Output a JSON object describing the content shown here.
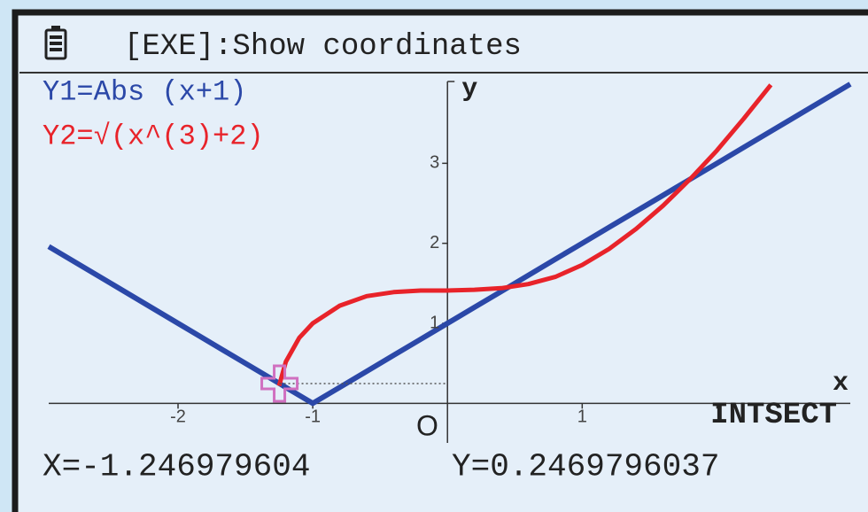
{
  "chart_data": {
    "type": "line",
    "header": "[EXE]:Show coordinates",
    "x_axis_label": "x",
    "y_axis_label": "y",
    "origin_label": "O",
    "status": "INTSECT",
    "x": [
      -2.96,
      -2.5,
      -2,
      -1.5,
      -1.25,
      -1.2,
      -1.1,
      -1,
      -0.8,
      -0.6,
      -0.4,
      -0.2,
      0,
      0.2,
      0.4,
      0.6,
      0.8,
      1,
      1.2,
      1.4,
      1.6,
      1.8,
      2,
      2.2,
      2.4,
      2.99
    ],
    "series": [
      {
        "name": "Y1=Abs (x+1)",
        "color": "#2b48a8",
        "values": [
          1.96,
          1.5,
          1,
          0.5,
          0.25,
          0.2,
          0.1,
          0,
          0.2,
          0.4,
          0.6,
          0.8,
          1,
          1.2,
          1.4,
          1.6,
          1.8,
          2,
          2.2,
          2.4,
          2.6,
          2.8,
          3,
          3.2,
          3.4,
          3.99
        ]
      },
      {
        "name": "Y2=√(x^(3)+2)",
        "color": "#e8232a",
        "values": [
          null,
          null,
          null,
          null,
          0.22,
          0.52,
          0.82,
          1,
          1.22,
          1.34,
          1.39,
          1.41,
          1.41,
          1.42,
          1.44,
          1.49,
          1.58,
          1.73,
          1.93,
          2.18,
          2.47,
          2.8,
          3.16,
          3.56,
          3.98,
          null
        ]
      }
    ],
    "cursor": {
      "x": -1.246979604,
      "y": 0.2469796037,
      "x_label": "X=-1.246979604",
      "y_label": "Y=0.2469796037",
      "color": "#d070c0"
    },
    "xlim": [
      -2.96,
      2.99
    ],
    "ylim": [
      -0.55,
      4.1
    ],
    "xticks": [
      -2,
      -1,
      1,
      2
    ],
    "xtick_labels": [
      "-2",
      "-1",
      "1",
      null
    ],
    "yticks": [
      1,
      2,
      3
    ]
  }
}
